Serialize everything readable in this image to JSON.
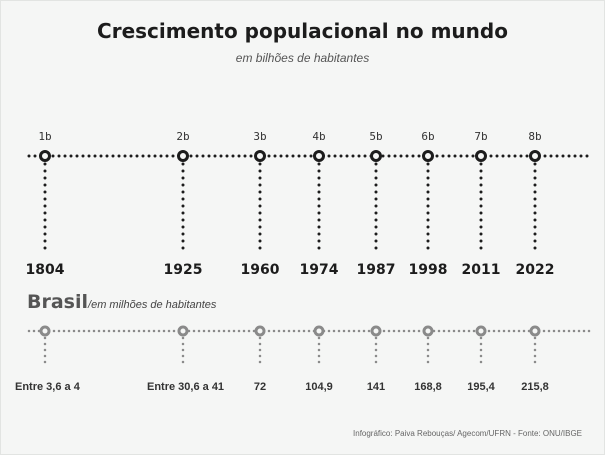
{
  "chart_data": {
    "type": "timeline",
    "title": "Crescimento populacional no mundo",
    "subtitle": "em bilhões de habitantes",
    "world": {
      "years": [
        "1804",
        "1925",
        "1960",
        "1974",
        "1987",
        "1998",
        "2011",
        "2022"
      ],
      "labels": [
        "1b",
        "2b",
        "3b",
        "4b",
        "5b",
        "6b",
        "7b",
        "8b"
      ],
      "values": [
        1,
        2,
        3,
        4,
        5,
        6,
        7,
        8
      ],
      "color": "#1c1c1c"
    },
    "brasil": {
      "title": "Brasil",
      "subtitle": "/em milhões de habitantes",
      "labels": [
        "Entre 3,6 a 4",
        "Entre 30,6 a 41",
        "72",
        "104,9",
        "141",
        "168,8",
        "195,4",
        "215,8"
      ],
      "color": "#8a8a8a"
    },
    "credit": "Infográfico: Paiva Rebouças/ Agecom/UFRN - Fonte: ONU/IBGE"
  }
}
